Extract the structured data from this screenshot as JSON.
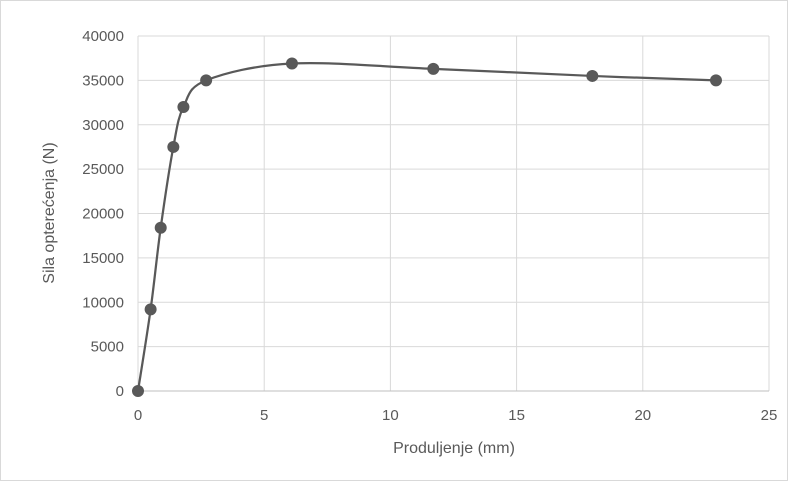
{
  "chart_data": {
    "type": "scatter",
    "title": "",
    "xlabel": "Produljenje (mm)",
    "ylabel": "Sila opterećenja (N)",
    "xlim": [
      0,
      25
    ],
    "ylim": [
      0,
      40000
    ],
    "x_ticks": [
      "0",
      "5",
      "10",
      "15",
      "20",
      "25"
    ],
    "y_ticks": [
      "0",
      "5000",
      "10000",
      "15000",
      "20000",
      "25000",
      "30000",
      "35000",
      "40000"
    ],
    "grid": true,
    "legend": "none",
    "smooth_line": true,
    "series": [
      {
        "x": [
          0,
          0.5,
          0.9,
          1.4,
          1.8,
          2.7,
          6.1,
          11.7,
          18.0,
          22.9
        ],
        "y": [
          0,
          9200,
          18400,
          27500,
          32000,
          35000,
          36900,
          36300,
          35500,
          35000
        ]
      }
    ],
    "colors": {
      "series": "#595959",
      "grid": "#d9d9d9",
      "text": "#595959"
    }
  }
}
